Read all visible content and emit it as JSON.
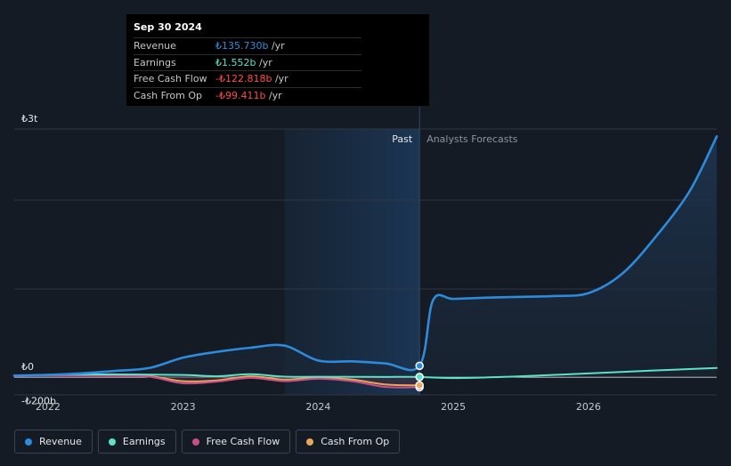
{
  "tooltip": {
    "date": "Sep 30 2024",
    "rows": [
      {
        "label": "Revenue",
        "value": "₺135.730b",
        "unit": "/yr",
        "color": "#2e8bdb"
      },
      {
        "label": "Earnings",
        "value": "₺1.552b",
        "unit": "/yr",
        "color": "#5de0c8"
      },
      {
        "label": "Free Cash Flow",
        "value": "-₺122.818b",
        "unit": "/yr",
        "color": "#ff4b4b"
      },
      {
        "label": "Cash From Op",
        "value": "-₺99.411b",
        "unit": "/yr",
        "color": "#ff4b4b"
      }
    ]
  },
  "legend": [
    {
      "label": "Revenue",
      "color": "#2e8bdb"
    },
    {
      "label": "Earnings",
      "color": "#5de0c8"
    },
    {
      "label": "Free Cash Flow",
      "color": "#c7508a"
    },
    {
      "label": "Cash From Op",
      "color": "#e9a55a"
    }
  ],
  "chart_data": {
    "type": "line",
    "y_unit": "₺ billions",
    "ylim": [
      -200,
      3000
    ],
    "y_tick_labels": [
      {
        "value": 3000,
        "label": "₺3t"
      },
      {
        "value": 0,
        "label": "₺0"
      },
      {
        "value": -200,
        "label": "-₺200b"
      }
    ],
    "x_range": [
      2021.75,
      2026.95
    ],
    "x_tick_labels": [
      {
        "value": 2022,
        "label": "2022"
      },
      {
        "value": 2023,
        "label": "2023"
      },
      {
        "value": 2024,
        "label": "2024"
      },
      {
        "value": 2025,
        "label": "2025"
      },
      {
        "value": 2026,
        "label": "2026"
      }
    ],
    "past_label": "Past",
    "forecast_label": "Analysts Forecasts",
    "past_region_start": 2023.75,
    "divider_x": 2024.75,
    "series": [
      {
        "name": "Revenue",
        "color": "#2e8bdb",
        "x": [
          2021.75,
          2022.0,
          2022.25,
          2022.5,
          2022.75,
          2023.0,
          2023.25,
          2023.5,
          2023.75,
          2024.0,
          2024.25,
          2024.5,
          2024.75,
          2024.85,
          2025.0,
          2025.25,
          2025.5,
          2025.75,
          2026.0,
          2026.25,
          2026.5,
          2026.75,
          2026.95
        ],
        "y": [
          18,
          26,
          45,
          75,
          110,
          235,
          305,
          355,
          380,
          200,
          190,
          165,
          136,
          930,
          945,
          960,
          970,
          980,
          1015,
          1250,
          1700,
          2250,
          2910
        ]
      },
      {
        "name": "Earnings",
        "color": "#5de0c8",
        "x": [
          2021.75,
          2022.0,
          2022.5,
          2023.0,
          2023.25,
          2023.5,
          2023.75,
          2024.0,
          2024.25,
          2024.5,
          2024.75,
          2025.0,
          2025.5,
          2026.0,
          2026.5,
          2026.95
        ],
        "y": [
          15,
          28,
          32,
          25,
          10,
          35,
          5,
          4,
          3,
          2,
          1.55,
          -12,
          10,
          45,
          80,
          110
        ]
      },
      {
        "name": "Free Cash Flow",
        "color": "#c7508a",
        "x": [
          2021.75,
          2022.0,
          2022.5,
          2022.75,
          2023.0,
          2023.25,
          2023.5,
          2023.75,
          2024.0,
          2024.25,
          2024.5,
          2024.75
        ],
        "y": [
          10,
          18,
          15,
          5,
          -75,
          -55,
          -10,
          -50,
          -20,
          -50,
          -120,
          -122.8
        ]
      },
      {
        "name": "Cash From Op",
        "color": "#e9a55a",
        "x": [
          2021.75,
          2022.0,
          2022.5,
          2022.75,
          2023.0,
          2023.25,
          2023.5,
          2023.75,
          2024.0,
          2024.25,
          2024.5,
          2024.75
        ],
        "y": [
          12,
          20,
          20,
          12,
          -50,
          -40,
          10,
          -30,
          -5,
          -30,
          -90,
          -99.4
        ]
      }
    ]
  }
}
